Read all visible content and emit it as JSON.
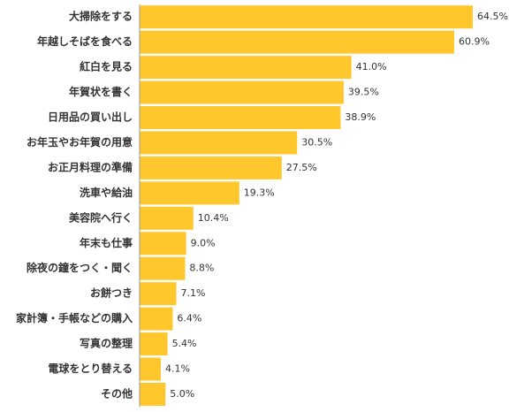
{
  "chart_data": {
    "type": "bar",
    "orientation": "horizontal",
    "categories": [
      "大掃除をする",
      "年越しそばを食べる",
      "紅白を見る",
      "年賀状を書く",
      "日用品の買い出し",
      "お年玉やお年賀の用意",
      "お正月料理の準備",
      "洗車や給油",
      "美容院へ行く",
      "年末も仕事",
      "除夜の鐘をつく・聞く",
      "お餅つき",
      "家計簿・手帳などの購入",
      "写真の整理",
      "電球をとり替える",
      "その他"
    ],
    "values": [
      64.5,
      60.9,
      41.0,
      39.5,
      38.9,
      30.5,
      27.5,
      19.3,
      10.4,
      9.0,
      8.8,
      7.1,
      6.4,
      5.4,
      4.1,
      5.0
    ],
    "value_labels": [
      "64.5%",
      "60.9%",
      "41.0%",
      "39.5%",
      "38.9%",
      "30.5%",
      "27.5%",
      "19.3%",
      "10.4%",
      "9.0%",
      "8.8%",
      "7.1%",
      "6.4%",
      "5.4%",
      "4.1%",
      "5.0%"
    ],
    "color": "#ffc72c"
  }
}
